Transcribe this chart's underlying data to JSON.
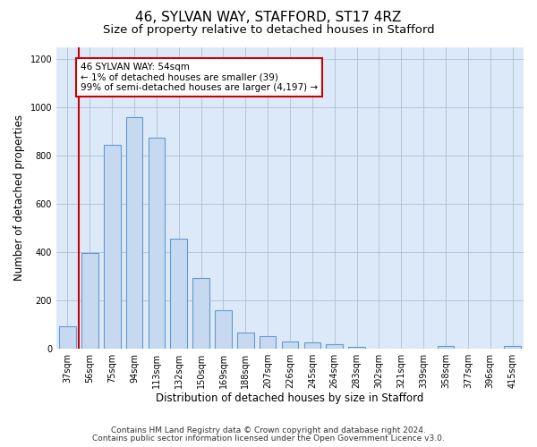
{
  "title": "46, SYLVAN WAY, STAFFORD, ST17 4RZ",
  "subtitle": "Size of property relative to detached houses in Stafford",
  "xlabel": "Distribution of detached houses by size in Stafford",
  "ylabel": "Number of detached properties",
  "categories": [
    "37sqm",
    "56sqm",
    "75sqm",
    "94sqm",
    "113sqm",
    "132sqm",
    "150sqm",
    "169sqm",
    "188sqm",
    "207sqm",
    "226sqm",
    "245sqm",
    "264sqm",
    "283sqm",
    "302sqm",
    "321sqm",
    "339sqm",
    "358sqm",
    "377sqm",
    "396sqm",
    "415sqm"
  ],
  "values": [
    90,
    395,
    845,
    960,
    875,
    455,
    290,
    160,
    65,
    50,
    30,
    25,
    18,
    5,
    0,
    0,
    0,
    10,
    0,
    0,
    10
  ],
  "bar_color": "#c6d9f0",
  "bar_edge_color": "#6699cc",
  "background_color": "#ffffff",
  "axes_bg_color": "#dce9f8",
  "grid_color": "#b0bfd0",
  "vline_color": "#cc0000",
  "annotation_text": "46 SYLVAN WAY: 54sqm\n← 1% of detached houses are smaller (39)\n99% of semi-detached houses are larger (4,197) →",
  "annotation_box_color": "#ffffff",
  "annotation_box_edge_color": "#cc0000",
  "ylim": [
    0,
    1250
  ],
  "yticks": [
    0,
    200,
    400,
    600,
    800,
    1000,
    1200
  ],
  "footer_line1": "Contains HM Land Registry data © Crown copyright and database right 2024.",
  "footer_line2": "Contains public sector information licensed under the Open Government Licence v3.0.",
  "title_fontsize": 11,
  "subtitle_fontsize": 9.5,
  "axis_label_fontsize": 8.5,
  "tick_fontsize": 7,
  "annotation_fontsize": 7.5,
  "footer_fontsize": 6.5,
  "bar_width": 0.75,
  "vline_x": 0.5
}
